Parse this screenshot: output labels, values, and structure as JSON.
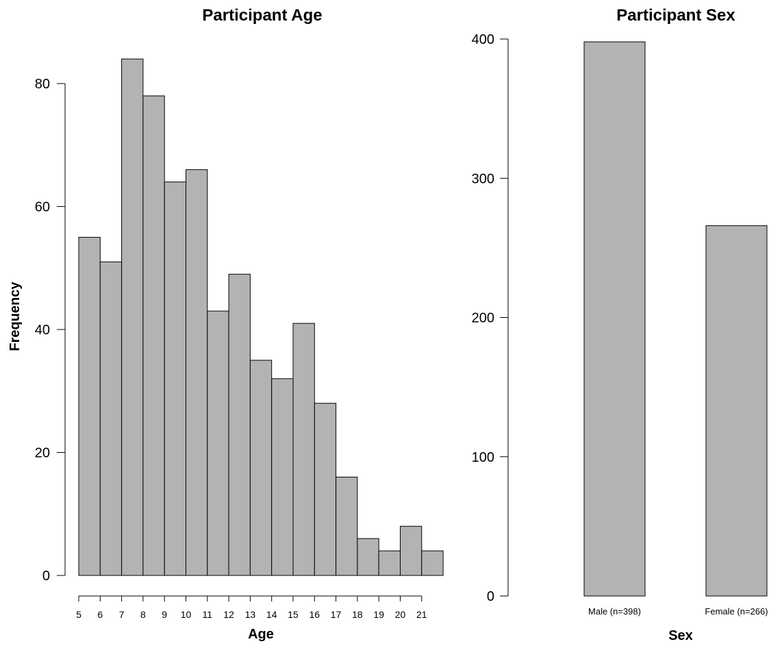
{
  "chart_data": [
    {
      "type": "bar",
      "title": "Participant Age",
      "xlabel": "Age",
      "ylabel": "Frequency",
      "ylim": [
        0,
        87
      ],
      "yticks": [
        0,
        20,
        40,
        60,
        80
      ],
      "xticks": [
        5,
        6,
        7,
        8,
        9,
        10,
        11,
        12,
        13,
        14,
        15,
        16,
        17,
        18,
        19,
        20,
        21
      ],
      "categories": [
        "5",
        "6",
        "7",
        "8",
        "9",
        "10",
        "11",
        "12",
        "13",
        "14",
        "15",
        "16",
        "17",
        "18",
        "19",
        "20",
        "21"
      ],
      "values": [
        55,
        51,
        84,
        78,
        64,
        66,
        43,
        49,
        35,
        32,
        41,
        28,
        16,
        6,
        4,
        8,
        4
      ],
      "bar_color": "#b3b3b3",
      "grid": false
    },
    {
      "type": "bar",
      "title": "Participant Sex",
      "xlabel": "Sex",
      "ylabel": "",
      "ylim": [
        0,
        400
      ],
      "yticks": [
        0,
        100,
        200,
        300,
        400
      ],
      "categories": [
        "Male (n=398)",
        "Female (n=266)"
      ],
      "values": [
        398,
        266
      ],
      "bar_color": "#b3b3b3",
      "grid": false
    }
  ]
}
